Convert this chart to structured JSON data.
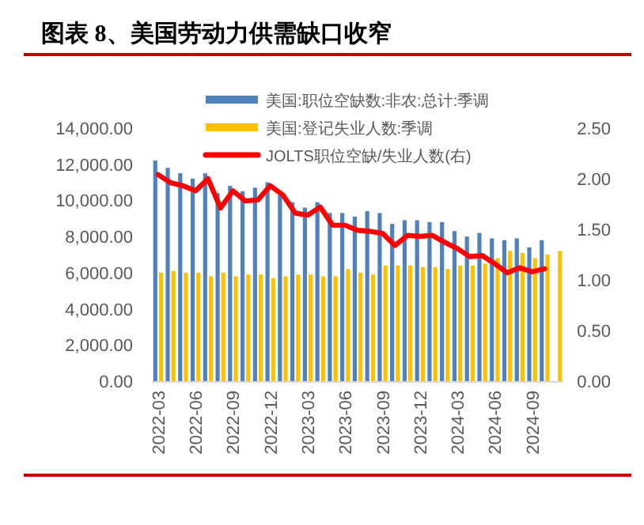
{
  "chart_data": {
    "type": "bar",
    "title": "图表 8、美国劳动力供需缺口收窄",
    "categories": [
      "2022-03",
      null,
      null,
      "2022-06",
      null,
      null,
      "2022-09",
      null,
      null,
      "2022-12",
      null,
      null,
      "2023-03",
      null,
      null,
      "2023-06",
      null,
      null,
      "2023-09",
      null,
      null,
      "2023-12",
      null,
      null,
      "2024-03",
      null,
      null,
      "2024-06",
      null,
      null,
      "2024-09",
      null,
      null
    ],
    "series": [
      {
        "name": "美国:职位空缺数:非农:总计:季调",
        "color": "#4f81bd",
        "values": [
          12200,
          11800,
          11500,
          11200,
          11500,
          10400,
          10800,
          10500,
          10700,
          11000,
          10300,
          9900,
          9600,
          9900,
          9300,
          9300,
          9100,
          9400,
          9300,
          8700,
          8900,
          8900,
          8800,
          8800,
          8300,
          8000,
          8200,
          7900,
          7800,
          7900,
          7400,
          7800,
          null
        ]
      },
      {
        "name": "美国:登记失业人数:季调",
        "color": "#ffc000",
        "values": [
          6000,
          6100,
          6000,
          6000,
          5800,
          6000,
          5800,
          5900,
          5900,
          5700,
          5800,
          5900,
          5900,
          5800,
          5800,
          6200,
          6000,
          5900,
          6400,
          6400,
          6400,
          6300,
          6300,
          6200,
          6400,
          6400,
          6500,
          6800,
          7200,
          7100,
          6800,
          7000,
          7200
        ]
      },
      {
        "name": "JOLTS职位空缺/失业人数(右)",
        "type": "line",
        "axis": "y2",
        "color": "#ff0000",
        "values": [
          2.04,
          1.96,
          1.93,
          1.88,
          2.0,
          1.71,
          1.88,
          1.78,
          1.79,
          1.93,
          1.84,
          1.66,
          1.64,
          1.72,
          1.54,
          1.54,
          1.49,
          1.48,
          1.46,
          1.34,
          1.44,
          1.43,
          1.44,
          1.37,
          1.31,
          1.23,
          1.24,
          1.16,
          1.07,
          1.12,
          1.08,
          1.11,
          null
        ]
      }
    ],
    "ylim": [
      0,
      14000
    ],
    "yticks": [
      {
        "value": 0,
        "label": "0.00"
      },
      {
        "value": 2000,
        "label": "2,000.00"
      },
      {
        "value": 4000,
        "label": "4,000.00"
      },
      {
        "value": 6000,
        "label": "6,000.00"
      },
      {
        "value": 8000,
        "label": "8,000.00"
      },
      {
        "value": 10000,
        "label": "10,000.00"
      },
      {
        "value": 12000,
        "label": "12,000.00"
      },
      {
        "value": 14000,
        "label": "14,000.00"
      }
    ],
    "y2lim": [
      0,
      2.5
    ],
    "y2ticks": [
      {
        "value": 0,
        "label": "0.00"
      },
      {
        "value": 0.5,
        "label": "0.50"
      },
      {
        "value": 1,
        "label": "1.00"
      },
      {
        "value": 1.5,
        "label": "1.50"
      },
      {
        "value": 2,
        "label": "2.00"
      },
      {
        "value": 2.5,
        "label": "2.50"
      }
    ],
    "legend": "top",
    "grid": false
  }
}
